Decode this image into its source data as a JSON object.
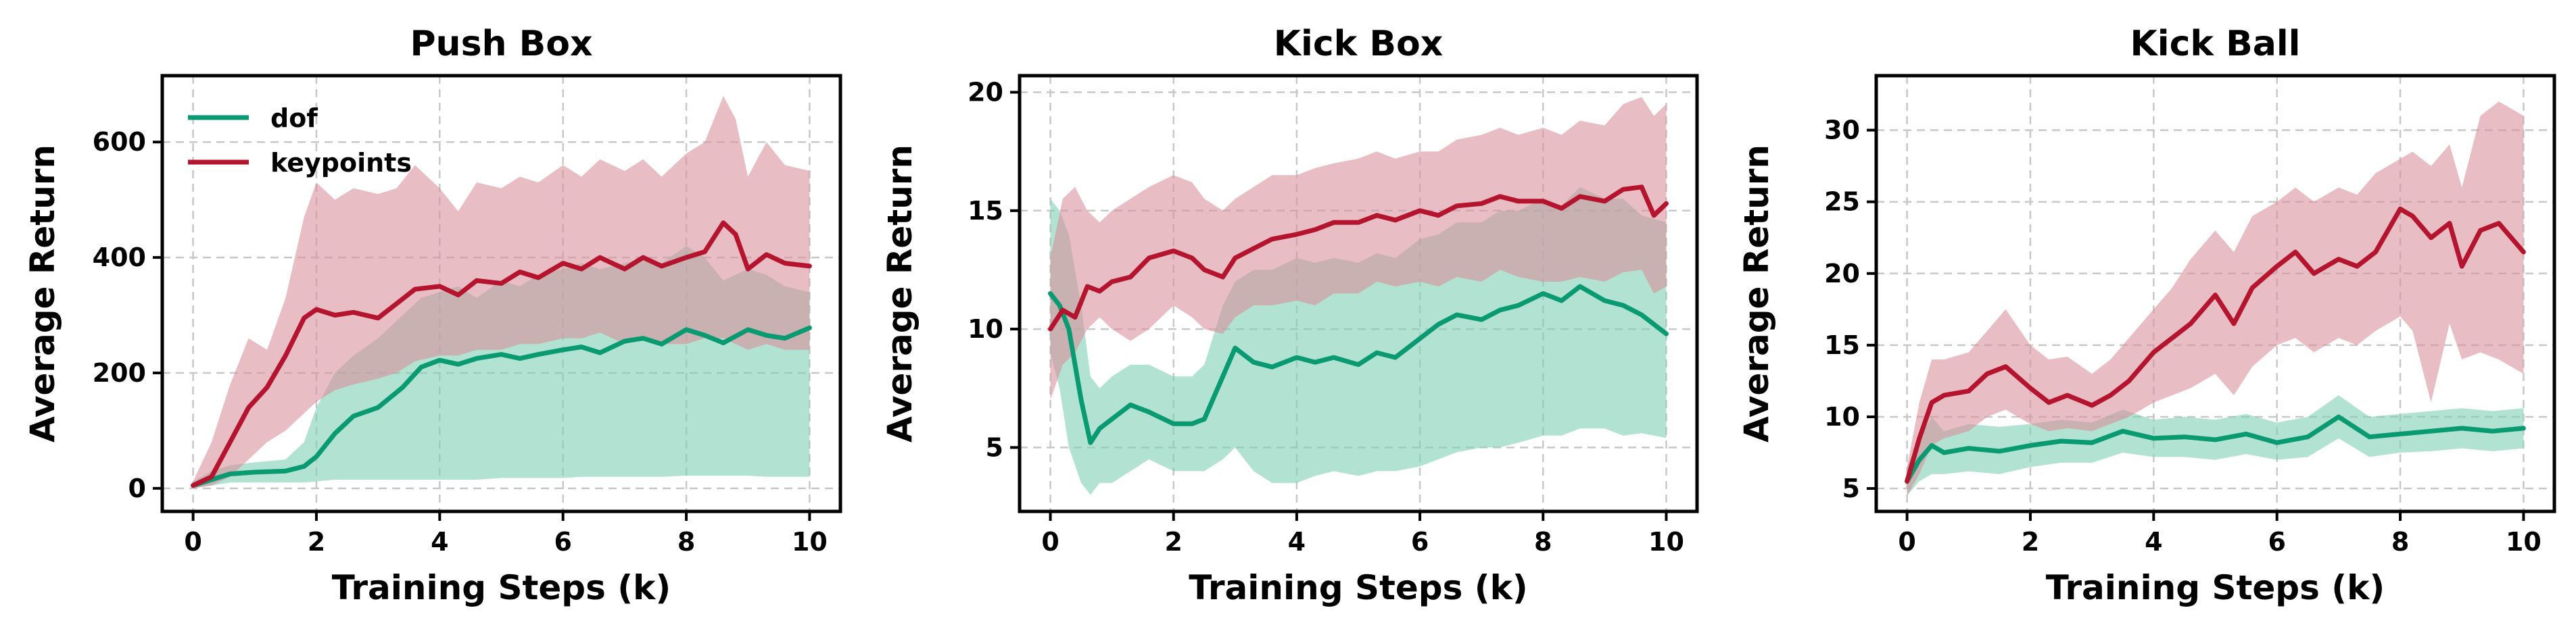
{
  "colors": {
    "dof": "#0a9a72",
    "keypoints": "#b5142e",
    "dof_band": "#7fcfb4",
    "keypoints_band": "#d8919c",
    "grid": "#c8c8c8"
  },
  "chart_data": [
    {
      "type": "line",
      "title": "Push Box",
      "xlabel": "Training Steps (k)",
      "ylabel": "Average Return",
      "xlim": [
        -0.5,
        10.5
      ],
      "ylim": [
        -40,
        715
      ],
      "xticks": [
        0,
        2,
        4,
        6,
        8,
        10
      ],
      "yticks": [
        0,
        200,
        400,
        600
      ],
      "grid": true,
      "legend": {
        "placement": "top-left",
        "entries": [
          "dof",
          "keypoints"
        ]
      },
      "series": [
        {
          "name": "dof",
          "color": "#0a9a72",
          "x": [
            0,
            0.3,
            0.6,
            1.0,
            1.5,
            1.8,
            2.0,
            2.3,
            2.6,
            3.0,
            3.4,
            3.7,
            4.0,
            4.3,
            4.6,
            5.0,
            5.3,
            5.6,
            6.0,
            6.3,
            6.6,
            7.0,
            7.3,
            7.6,
            8.0,
            8.3,
            8.6,
            9.0,
            9.3,
            9.6,
            10.0
          ],
          "y": [
            5,
            15,
            25,
            28,
            30,
            38,
            55,
            95,
            125,
            140,
            175,
            210,
            222,
            215,
            225,
            232,
            225,
            232,
            240,
            245,
            235,
            255,
            260,
            250,
            275,
            265,
            252,
            275,
            265,
            260,
            278
          ],
          "lower": [
            0,
            5,
            10,
            10,
            10,
            10,
            12,
            15,
            15,
            15,
            15,
            15,
            15,
            15,
            15,
            18,
            18,
            18,
            18,
            20,
            20,
            20,
            20,
            20,
            22,
            22,
            22,
            22,
            20,
            20,
            20
          ],
          "upper": [
            12,
            30,
            40,
            45,
            50,
            80,
            140,
            200,
            230,
            260,
            300,
            330,
            340,
            350,
            330,
            360,
            350,
            370,
            380,
            390,
            380,
            390,
            400,
            390,
            420,
            400,
            360,
            380,
            370,
            350,
            340
          ]
        },
        {
          "name": "keypoints",
          "color": "#b5142e",
          "x": [
            0,
            0.3,
            0.6,
            0.9,
            1.2,
            1.5,
            1.8,
            2.0,
            2.3,
            2.6,
            3.0,
            3.3,
            3.6,
            4.0,
            4.3,
            4.6,
            5.0,
            5.3,
            5.6,
            6.0,
            6.3,
            6.6,
            7.0,
            7.3,
            7.6,
            8.0,
            8.3,
            8.6,
            8.8,
            9.0,
            9.3,
            9.6,
            10.0
          ],
          "y": [
            5,
            20,
            80,
            140,
            175,
            230,
            295,
            310,
            300,
            305,
            295,
            320,
            345,
            350,
            335,
            360,
            355,
            375,
            365,
            390,
            380,
            400,
            380,
            400,
            385,
            400,
            410,
            460,
            440,
            380,
            405,
            390,
            385
          ],
          "lower": [
            0,
            5,
            20,
            50,
            80,
            100,
            130,
            150,
            170,
            180,
            190,
            200,
            220,
            230,
            230,
            240,
            240,
            250,
            250,
            260,
            260,
            270,
            250,
            260,
            250,
            250,
            260,
            260,
            250,
            240,
            250,
            240,
            240
          ],
          "upper": [
            12,
            80,
            180,
            260,
            240,
            330,
            470,
            530,
            500,
            520,
            510,
            520,
            560,
            520,
            480,
            530,
            520,
            540,
            530,
            560,
            540,
            570,
            550,
            570,
            540,
            580,
            600,
            680,
            640,
            540,
            600,
            560,
            550
          ]
        }
      ]
    },
    {
      "type": "line",
      "title": "Kick Box",
      "xlabel": "Training Steps (k)",
      "ylabel": "Average Return",
      "xlim": [
        -0.5,
        10.5
      ],
      "ylim": [
        2.3,
        20.7
      ],
      "xticks": [
        0,
        2,
        4,
        6,
        8,
        10
      ],
      "yticks": [
        5,
        10,
        15,
        20
      ],
      "grid": true,
      "series": [
        {
          "name": "dof",
          "color": "#0a9a72",
          "x": [
            0,
            0.15,
            0.3,
            0.5,
            0.65,
            0.8,
            1.0,
            1.3,
            1.6,
            2.0,
            2.3,
            2.5,
            2.8,
            3.0,
            3.3,
            3.6,
            4.0,
            4.3,
            4.6,
            5.0,
            5.3,
            5.6,
            6.0,
            6.3,
            6.6,
            7.0,
            7.3,
            7.6,
            8.0,
            8.3,
            8.6,
            9.0,
            9.3,
            9.6,
            10.0
          ],
          "y": [
            11.5,
            11.0,
            10.0,
            7.0,
            5.2,
            5.8,
            6.2,
            6.8,
            6.5,
            6.0,
            6.0,
            6.2,
            8.0,
            9.2,
            8.6,
            8.4,
            8.8,
            8.6,
            8.8,
            8.5,
            9.0,
            8.8,
            9.6,
            10.2,
            10.6,
            10.4,
            10.8,
            11.0,
            11.5,
            11.2,
            11.8,
            11.2,
            11.0,
            10.6,
            9.8
          ],
          "lower": [
            9.0,
            7.5,
            5.0,
            3.5,
            3.0,
            3.5,
            3.5,
            4.0,
            4.5,
            4.0,
            4.0,
            4.0,
            4.5,
            5.0,
            4.0,
            3.5,
            3.5,
            3.8,
            4.0,
            3.8,
            4.0,
            4.0,
            4.2,
            4.5,
            4.8,
            5.0,
            5.0,
            5.2,
            5.5,
            5.5,
            5.8,
            5.8,
            5.5,
            5.6,
            5.4
          ],
          "upper": [
            15.5,
            15.0,
            14.0,
            11.0,
            8.0,
            7.5,
            8.0,
            8.5,
            8.5,
            8.0,
            8.0,
            8.5,
            11.0,
            12.0,
            12.5,
            12.5,
            13.0,
            12.8,
            13.0,
            12.8,
            13.2,
            13.0,
            13.8,
            14.0,
            14.5,
            14.5,
            15.0,
            15.0,
            15.5,
            15.2,
            16.0,
            15.5,
            15.5,
            14.8,
            14.5
          ]
        },
        {
          "name": "keypoints",
          "color": "#b5142e",
          "x": [
            0,
            0.2,
            0.4,
            0.6,
            0.8,
            1.0,
            1.3,
            1.6,
            2.0,
            2.3,
            2.5,
            2.8,
            3.0,
            3.3,
            3.6,
            4.0,
            4.3,
            4.6,
            5.0,
            5.3,
            5.6,
            6.0,
            6.3,
            6.6,
            7.0,
            7.3,
            7.6,
            8.0,
            8.3,
            8.6,
            9.0,
            9.3,
            9.6,
            9.8,
            10.0
          ],
          "y": [
            10.0,
            10.8,
            10.5,
            11.8,
            11.6,
            12.0,
            12.2,
            13.0,
            13.3,
            13.0,
            12.5,
            12.2,
            13.0,
            13.4,
            13.8,
            14.0,
            14.2,
            14.5,
            14.5,
            14.8,
            14.6,
            15.0,
            14.8,
            15.2,
            15.3,
            15.6,
            15.4,
            15.4,
            15.1,
            15.6,
            15.4,
            15.9,
            16.0,
            14.8,
            15.3
          ],
          "lower": [
            7.0,
            8.5,
            9.0,
            10.0,
            10.5,
            10.0,
            9.5,
            10.0,
            11.0,
            10.5,
            10.0,
            9.8,
            10.5,
            11.0,
            11.0,
            11.2,
            11.0,
            11.5,
            11.5,
            12.0,
            11.8,
            12.0,
            11.8,
            12.2,
            12.0,
            12.5,
            12.2,
            12.0,
            12.0,
            12.2,
            12.0,
            12.4,
            12.5,
            11.5,
            11.8
          ],
          "upper": [
            13.0,
            15.5,
            16.0,
            15.0,
            14.5,
            15.0,
            15.5,
            16.0,
            16.5,
            16.2,
            15.5,
            15.0,
            15.5,
            16.0,
            16.5,
            16.5,
            16.8,
            17.0,
            17.2,
            17.5,
            17.2,
            17.5,
            17.5,
            18.0,
            18.2,
            18.5,
            18.2,
            18.5,
            18.2,
            18.8,
            18.6,
            19.5,
            19.8,
            19.0,
            19.5
          ]
        }
      ]
    },
    {
      "type": "line",
      "title": "Kick Ball",
      "xlabel": "Training Steps (k)",
      "ylabel": "Average Return",
      "xlim": [
        -0.5,
        10.5
      ],
      "ylim": [
        3.4,
        33.8
      ],
      "xticks": [
        0,
        2,
        4,
        6,
        8,
        10
      ],
      "yticks": [
        5,
        10,
        15,
        20,
        25,
        30
      ],
      "grid": true,
      "series": [
        {
          "name": "dof",
          "color": "#0a9a72",
          "x": [
            0,
            0.2,
            0.4,
            0.6,
            1.0,
            1.5,
            2.0,
            2.5,
            3.0,
            3.5,
            4.0,
            4.5,
            5.0,
            5.5,
            6.0,
            6.5,
            7.0,
            7.5,
            8.0,
            8.5,
            9.0,
            9.5,
            10.0
          ],
          "y": [
            5.5,
            7.0,
            8.0,
            7.5,
            7.8,
            7.6,
            8.0,
            8.3,
            8.2,
            9.0,
            8.5,
            8.6,
            8.4,
            8.8,
            8.2,
            8.6,
            10.0,
            8.6,
            8.8,
            9.0,
            9.2,
            9.0,
            9.2
          ],
          "lower": [
            4.5,
            5.5,
            6.0,
            6.0,
            6.2,
            6.0,
            6.5,
            6.8,
            6.8,
            7.5,
            7.2,
            7.2,
            7.0,
            7.4,
            7.0,
            7.2,
            8.5,
            7.2,
            7.5,
            7.6,
            7.8,
            7.6,
            7.8
          ],
          "upper": [
            6.5,
            8.5,
            10.0,
            9.0,
            9.5,
            9.3,
            9.5,
            9.8,
            9.6,
            10.5,
            9.8,
            10.0,
            9.8,
            10.2,
            9.6,
            10.0,
            11.5,
            10.0,
            10.2,
            10.4,
            10.6,
            10.4,
            10.6
          ]
        },
        {
          "name": "keypoints",
          "color": "#b5142e",
          "x": [
            0,
            0.2,
            0.4,
            0.6,
            1.0,
            1.3,
            1.6,
            2.0,
            2.3,
            2.6,
            3.0,
            3.3,
            3.6,
            4.0,
            4.3,
            4.6,
            5.0,
            5.3,
            5.6,
            6.0,
            6.3,
            6.6,
            7.0,
            7.3,
            7.6,
            8.0,
            8.2,
            8.5,
            8.8,
            9.0,
            9.3,
            9.6,
            10.0
          ],
          "y": [
            5.5,
            8.5,
            11.0,
            11.5,
            11.8,
            13.0,
            13.5,
            12.0,
            11.0,
            11.5,
            10.8,
            11.5,
            12.5,
            14.5,
            15.5,
            16.5,
            18.5,
            16.5,
            19.0,
            20.5,
            21.5,
            20.0,
            21.0,
            20.5,
            21.5,
            24.5,
            24.0,
            22.5,
            23.5,
            20.5,
            23.0,
            23.5,
            21.5
          ],
          "lower": [
            4.5,
            6.0,
            8.0,
            8.5,
            9.0,
            10.0,
            10.5,
            9.5,
            9.0,
            9.2,
            9.0,
            9.5,
            10.0,
            11.0,
            11.5,
            12.0,
            13.0,
            11.5,
            13.5,
            15.0,
            15.5,
            14.5,
            15.5,
            15.0,
            16.0,
            17.0,
            16.0,
            11.0,
            16.5,
            14.0,
            14.5,
            14.0,
            13.0
          ],
          "upper": [
            6.5,
            11.0,
            14.0,
            14.0,
            14.5,
            16.0,
            17.5,
            15.0,
            14.0,
            14.2,
            13.0,
            14.0,
            15.5,
            17.5,
            19.0,
            21.0,
            23.0,
            21.5,
            24.0,
            25.0,
            26.0,
            25.0,
            26.0,
            25.5,
            27.0,
            28.0,
            28.5,
            27.5,
            29.0,
            26.0,
            31.0,
            32.0,
            31.0
          ]
        }
      ]
    }
  ]
}
